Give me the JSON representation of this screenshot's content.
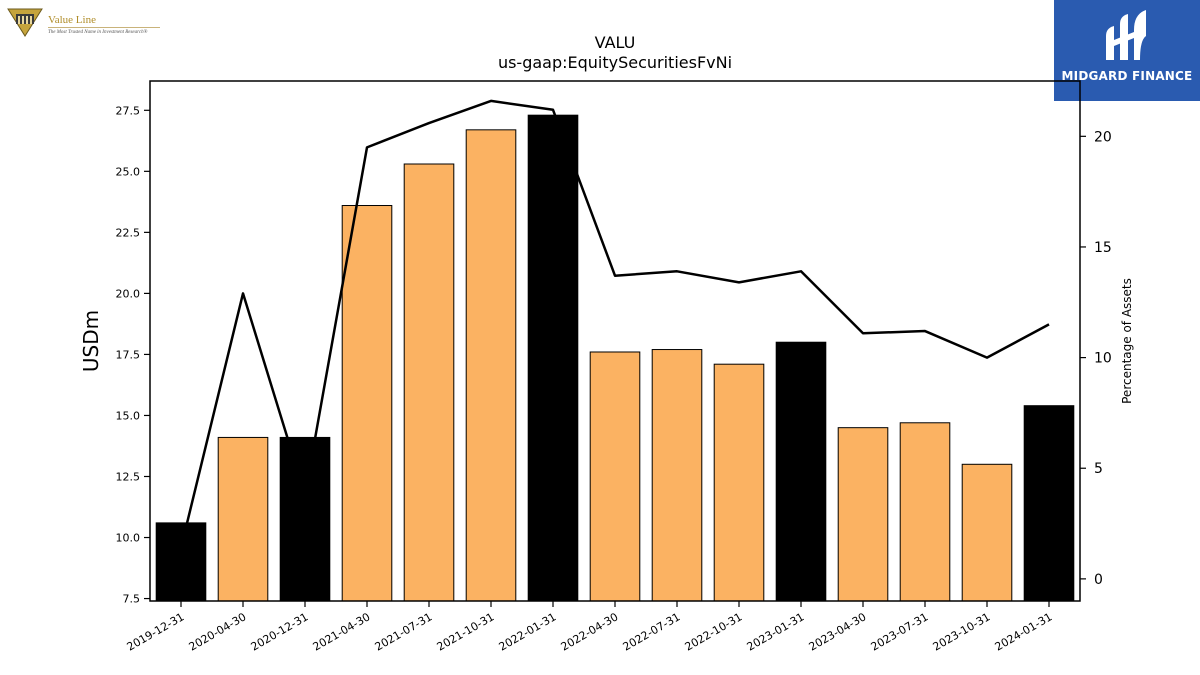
{
  "logos": {
    "value_line": {
      "name": "Value Line",
      "tagline": "The Most Trusted Name in Investment Research®",
      "color": "#b08d2a"
    },
    "midgard": {
      "name": "MIDGARD FINANCE",
      "background": "#2a5bb0"
    }
  },
  "chart_data": {
    "type": "bar",
    "title": "VALU",
    "subtitle": "us-gaap:EquitySecuritiesFvNi",
    "ylabel": "USDm",
    "y2label": "Percentage of Assets",
    "ylim": [
      7.4,
      28.7
    ],
    "y2lim": [
      -1.0,
      22.5
    ],
    "yticks": [
      "7.5",
      "10.0",
      "12.5",
      "15.0",
      "17.5",
      "20.0",
      "22.5",
      "25.0",
      "27.5"
    ],
    "y2ticks": [
      "0",
      "5",
      "10",
      "15",
      "20"
    ],
    "categories": [
      "2019-12-31",
      "2020-04-30",
      "2020-12-31",
      "2021-04-30",
      "2021-07-31",
      "2021-10-31",
      "2022-01-31",
      "2022-04-30",
      "2022-07-31",
      "2022-10-31",
      "2023-01-31",
      "2023-04-30",
      "2023-07-31",
      "2023-10-31",
      "2024-01-31"
    ],
    "series": [
      {
        "values": [
          10.6,
          14.1,
          14.1,
          23.6,
          25.3,
          26.7,
          27.3,
          17.6,
          17.7,
          17.1,
          18.0,
          14.5,
          14.7,
          13.0,
          15.4
        ],
        "colors": [
          "#000000",
          "#fbb262",
          "#000000",
          "#fbb262",
          "#fbb262",
          "#fbb262",
          "#000000",
          "#fbb262",
          "#fbb262",
          "#fbb262",
          "#000000",
          "#fbb262",
          "#fbb262",
          "#fbb262",
          "#000000"
        ]
      },
      {
        "axis": "right",
        "values": [
          1.4,
          12.9,
          3.8,
          19.5,
          20.6,
          21.6,
          21.2,
          13.7,
          13.9,
          13.4,
          13.9,
          11.1,
          11.2,
          10.0,
          11.5
        ]
      }
    ],
    "grid": false
  }
}
